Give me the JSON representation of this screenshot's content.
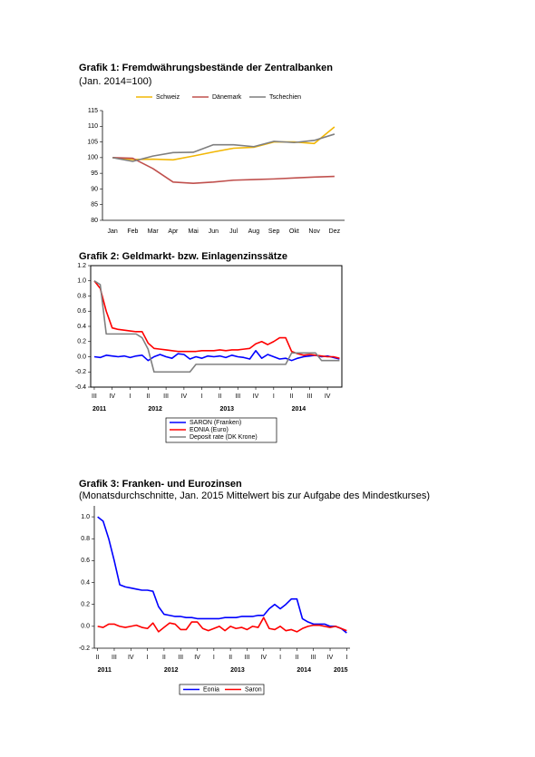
{
  "chart_data": [
    {
      "type": "line",
      "title": "Grafik 1: Fremdwährungsbestände der Zentralbanken",
      "subtitle": "(Jan. 2014=100)",
      "legend": "top",
      "categories": [
        "Jan",
        "Feb",
        "Mar",
        "Apr",
        "Mai",
        "Jun",
        "Jul",
        "Aug",
        "Sep",
        "Okt",
        "Nov",
        "Dez"
      ],
      "series": [
        {
          "name": "Schweiz",
          "color": "#f2b705",
          "values": [
            100,
            99.4,
            99.5,
            99.3,
            100.5,
            101.8,
            103,
            103.3,
            105,
            105,
            104.5,
            109.8
          ]
        },
        {
          "name": "Dänemark",
          "color": "#c0504d",
          "values": [
            100,
            99.8,
            96.5,
            92.2,
            91.8,
            92.2,
            92.8,
            93,
            93.2,
            93.5,
            93.8,
            94
          ]
        },
        {
          "name": "Tschechien",
          "color": "#7f7f7f",
          "values": [
            100,
            98.8,
            100.5,
            101.6,
            101.7,
            104.1,
            104.1,
            103.5,
            105.2,
            104.8,
            105.5,
            107.5
          ]
        }
      ],
      "ylim": [
        80,
        115
      ],
      "yticks": [
        80,
        85,
        90,
        95,
        100,
        105,
        110,
        115
      ]
    },
    {
      "type": "line",
      "title": "Grafik 2: Geldmarkt- bzw. Einlagenzinssätze",
      "legend": "bottom",
      "x": [
        2011.5,
        2011.583,
        2011.667,
        2011.75,
        2011.833,
        2011.917,
        2012,
        2012.083,
        2012.167,
        2012.25,
        2012.333,
        2012.417,
        2012.5,
        2012.583,
        2012.667,
        2012.75,
        2012.833,
        2012.917,
        2013,
        2013.083,
        2013.167,
        2013.25,
        2013.333,
        2013.417,
        2013.5,
        2013.583,
        2013.667,
        2013.75,
        2013.833,
        2013.917,
        2014,
        2014.083,
        2014.167,
        2014.25,
        2014.333,
        2014.417,
        2014.5,
        2014.583,
        2014.667,
        2014.75,
        2014.833,
        2014.917
      ],
      "series": [
        {
          "name": "SARON (Franken)",
          "color": "#0000ff",
          "values": [
            0,
            -0.01,
            0.02,
            0.01,
            0,
            0.01,
            -0.01,
            0.01,
            0.02,
            -0.05,
            0,
            0.03,
            0,
            -0.02,
            0.04,
            0.03,
            -0.03,
            0,
            -0.02,
            0.01,
            0,
            0.01,
            -0.01,
            0.02,
            0,
            -0.01,
            -0.03,
            0.08,
            -0.02,
            0.03,
            0,
            -0.03,
            -0.02,
            -0.05,
            -0.02,
            0,
            0.01,
            0.02,
            0,
            0.01,
            -0.01,
            -0.03
          ]
        },
        {
          "name": "EONIA (Euro)",
          "color": "#ff0000",
          "values": [
            1,
            0.9,
            0.6,
            0.38,
            0.36,
            0.35,
            0.34,
            0.33,
            0.33,
            0.18,
            0.11,
            0.1,
            0.09,
            0.08,
            0.07,
            0.07,
            0.07,
            0.07,
            0.08,
            0.08,
            0.08,
            0.09,
            0.08,
            0.09,
            0.09,
            0.1,
            0.11,
            0.17,
            0.2,
            0.16,
            0.2,
            0.25,
            0.25,
            0.07,
            0.04,
            0.02,
            0.03,
            0.02,
            0.01,
            0,
            0,
            -0.02
          ]
        },
        {
          "name": "Deposit rate (DK Krone)",
          "color": "#808080",
          "values": [
            1,
            0.95,
            0.3,
            0.3,
            0.3,
            0.3,
            0.3,
            0.3,
            0.25,
            0.1,
            -0.2,
            -0.2,
            -0.2,
            -0.2,
            -0.2,
            -0.2,
            -0.2,
            -0.1,
            -0.1,
            -0.1,
            -0.1,
            -0.1,
            -0.1,
            -0.1,
            -0.1,
            -0.1,
            -0.1,
            -0.1,
            -0.1,
            -0.1,
            -0.1,
            -0.1,
            -0.1,
            0.05,
            0.05,
            0.05,
            0.05,
            0.05,
            -0.05,
            -0.05,
            -0.05,
            -0.05
          ]
        }
      ],
      "xlim": [
        2011.45,
        2014.95
      ],
      "xticks": [
        {
          "value": 2011.5,
          "label": "III"
        },
        {
          "value": 2011.75,
          "label": "IV"
        },
        {
          "value": 2012,
          "label": "I"
        },
        {
          "value": 2012.25,
          "label": "II"
        },
        {
          "value": 2012.5,
          "label": "III"
        },
        {
          "value": 2012.75,
          "label": "IV"
        },
        {
          "value": 2013,
          "label": "I"
        },
        {
          "value": 2013.25,
          "label": "II"
        },
        {
          "value": 2013.5,
          "label": "III"
        },
        {
          "value": 2013.75,
          "label": "IV"
        },
        {
          "value": 2014,
          "label": "I"
        },
        {
          "value": 2014.25,
          "label": "II"
        },
        {
          "value": 2014.5,
          "label": "III"
        },
        {
          "value": 2014.75,
          "label": "IV"
        }
      ],
      "x_year_labels": [
        2011,
        2012,
        2013,
        2014
      ],
      "ylim": [
        -0.4,
        1.2
      ],
      "yticks": [
        -0.4,
        -0.2,
        {
          "value": 0,
          "label": "0.0"
        },
        0.2,
        0.4,
        0.6,
        0.8,
        {
          "value": 1,
          "label": "1.0"
        },
        1.2
      ]
    },
    {
      "type": "line",
      "title": "Grafik 3: Franken- und Eurozinsen",
      "subtitle": "(Monatsdurchschnitte, Jan. 2015 Mittelwert bis zur Aufgabe des Mindestkurses)",
      "legend": "bottom",
      "x": [
        2011.25,
        2011.333,
        2011.417,
        2011.5,
        2011.583,
        2011.667,
        2011.75,
        2011.833,
        2011.917,
        2012,
        2012.083,
        2012.167,
        2012.25,
        2012.333,
        2012.417,
        2012.5,
        2012.583,
        2012.667,
        2012.75,
        2012.833,
        2012.917,
        2013,
        2013.083,
        2013.167,
        2013.25,
        2013.333,
        2013.417,
        2013.5,
        2013.583,
        2013.667,
        2013.75,
        2013.833,
        2013.917,
        2014,
        2014.083,
        2014.167,
        2014.25,
        2014.333,
        2014.417,
        2014.5,
        2014.583,
        2014.667,
        2014.75,
        2014.833,
        2014.917,
        2015
      ],
      "series": [
        {
          "name": "Eonia",
          "color": "#0000ff",
          "values": [
            1,
            0.96,
            0.8,
            0.6,
            0.38,
            0.36,
            0.35,
            0.34,
            0.33,
            0.33,
            0.32,
            0.18,
            0.11,
            0.1,
            0.09,
            0.09,
            0.08,
            0.08,
            0.07,
            0.07,
            0.07,
            0.07,
            0.07,
            0.08,
            0.08,
            0.08,
            0.09,
            0.09,
            0.09,
            0.1,
            0.1,
            0.16,
            0.2,
            0.16,
            0.2,
            0.25,
            0.25,
            0.07,
            0.04,
            0.02,
            0.02,
            0.02,
            0,
            0,
            -0.02,
            -0.06
          ]
        },
        {
          "name": "Saron",
          "color": "#ff0000",
          "values": [
            0,
            -0.01,
            0.02,
            0.02,
            0,
            -0.01,
            0,
            0.01,
            -0.01,
            -0.02,
            0.03,
            -0.05,
            -0.01,
            0.03,
            0.02,
            -0.03,
            -0.03,
            0.04,
            0.04,
            -0.02,
            -0.04,
            -0.02,
            0,
            -0.04,
            0,
            -0.02,
            -0.01,
            -0.03,
            0,
            -0.01,
            0.08,
            -0.02,
            -0.03,
            0,
            -0.04,
            -0.03,
            -0.05,
            -0.02,
            0,
            0.01,
            0.01,
            0,
            -0.01,
            0,
            -0.02,
            -0.04
          ]
        }
      ],
      "xlim": [
        2011.2,
        2015.05
      ],
      "xticks": [
        {
          "value": 2011.25,
          "label": "II"
        },
        {
          "value": 2011.5,
          "label": "III"
        },
        {
          "value": 2011.75,
          "label": "IV"
        },
        {
          "value": 2012,
          "label": "I"
        },
        {
          "value": 2012.25,
          "label": "II"
        },
        {
          "value": 2012.5,
          "label": "III"
        },
        {
          "value": 2012.75,
          "label": "IV"
        },
        {
          "value": 2013,
          "label": "I"
        },
        {
          "value": 2013.25,
          "label": "II"
        },
        {
          "value": 2013.5,
          "label": "III"
        },
        {
          "value": 2013.75,
          "label": "IV"
        },
        {
          "value": 2014,
          "label": "I"
        },
        {
          "value": 2014.25,
          "label": "II"
        },
        {
          "value": 2014.5,
          "label": "III"
        },
        {
          "value": 2014.75,
          "label": "IV"
        },
        {
          "value": 2015,
          "label": "I"
        }
      ],
      "x_year_labels": [
        2011,
        2012,
        2013,
        2014,
        2015
      ],
      "ylim": [
        -0.2,
        1.1
      ],
      "yticks": [
        -0.2,
        {
          "value": 0,
          "label": "0.0"
        },
        0.2,
        0.4,
        0.6,
        0.8,
        {
          "value": 1,
          "label": "1.0"
        }
      ]
    }
  ]
}
